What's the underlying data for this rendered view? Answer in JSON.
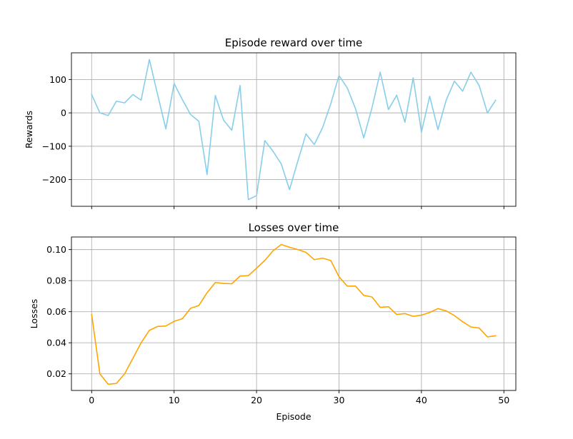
{
  "chart_data": [
    {
      "type": "line",
      "title": "Episode reward over time",
      "xlabel": "",
      "ylabel": "Rewards",
      "grid": true,
      "xlim": [
        -2.45,
        51.45
      ],
      "ylim": [
        -280,
        180
      ],
      "x_ticks": [
        0,
        10,
        20,
        30,
        40,
        50
      ],
      "x_tick_labels": [
        "",
        "",
        "",
        "",
        "",
        ""
      ],
      "y_ticks": [
        -200,
        -100,
        0,
        100
      ],
      "y_tick_labels": [
        "−200",
        "−100",
        "0",
        "100"
      ],
      "series": [
        {
          "color": "#87CEEB",
          "x": [
            0,
            1,
            2,
            3,
            4,
            5,
            6,
            7,
            8,
            9,
            10,
            11,
            12,
            13,
            14,
            15,
            16,
            17,
            18,
            19,
            20,
            21,
            22,
            23,
            24,
            25,
            26,
            27,
            28,
            29,
            30,
            31,
            32,
            33,
            34,
            35,
            36,
            37,
            38,
            39,
            40,
            41,
            42,
            43,
            44,
            45,
            46,
            47,
            48,
            49
          ],
          "values": [
            55,
            0,
            -8,
            35,
            30,
            55,
            38,
            160,
            55,
            -48,
            88,
            40,
            -5,
            -25,
            -185,
            52,
            -22,
            -52,
            82,
            -260,
            -248,
            -83,
            -115,
            -153,
            -230,
            -145,
            -63,
            -95,
            -45,
            27,
            112,
            75,
            13,
            -75,
            15,
            122,
            10,
            53,
            -28,
            105,
            -58,
            50,
            -50,
            38,
            95,
            65,
            122,
            82,
            0,
            38
          ]
        }
      ]
    },
    {
      "type": "line",
      "title": "Losses over time",
      "xlabel": "Episode",
      "ylabel": "Losses",
      "grid": true,
      "xlim": [
        -2.45,
        51.45
      ],
      "ylim": [
        0.0093,
        0.1081
      ],
      "x_ticks": [
        0,
        10,
        20,
        30,
        40,
        50
      ],
      "x_tick_labels": [
        "0",
        "10",
        "20",
        "30",
        "40",
        "50"
      ],
      "y_ticks": [
        0.02,
        0.04,
        0.06,
        0.08,
        0.1
      ],
      "y_tick_labels": [
        "0.02",
        "0.04",
        "0.06",
        "0.08",
        "0.10"
      ],
      "series": [
        {
          "color": "#FFA500",
          "x": [
            0,
            1,
            2,
            3,
            4,
            5,
            6,
            7,
            8,
            9,
            10,
            11,
            12,
            13,
            14,
            15,
            16,
            17,
            18,
            19,
            20,
            21,
            22,
            23,
            24,
            25,
            26,
            27,
            28,
            29,
            30,
            31,
            32,
            33,
            34,
            35,
            36,
            37,
            38,
            39,
            40,
            41,
            42,
            43,
            44,
            45,
            46,
            47,
            48,
            49
          ],
          "values": [
            0.0582,
            0.02,
            0.0133,
            0.0138,
            0.02,
            0.03,
            0.04,
            0.048,
            0.0505,
            0.0508,
            0.0538,
            0.0555,
            0.0622,
            0.064,
            0.0722,
            0.0788,
            0.0782,
            0.078,
            0.083,
            0.0832,
            0.088,
            0.093,
            0.0992,
            0.1033,
            0.1015,
            0.1,
            0.0982,
            0.0935,
            0.0945,
            0.093,
            0.0825,
            0.0765,
            0.0765,
            0.0705,
            0.0695,
            0.0628,
            0.0632,
            0.0582,
            0.0588,
            0.057,
            0.0578,
            0.0595,
            0.062,
            0.0605,
            0.0575,
            0.0535,
            0.0502,
            0.0495,
            0.0438,
            0.0445
          ]
        }
      ]
    }
  ]
}
